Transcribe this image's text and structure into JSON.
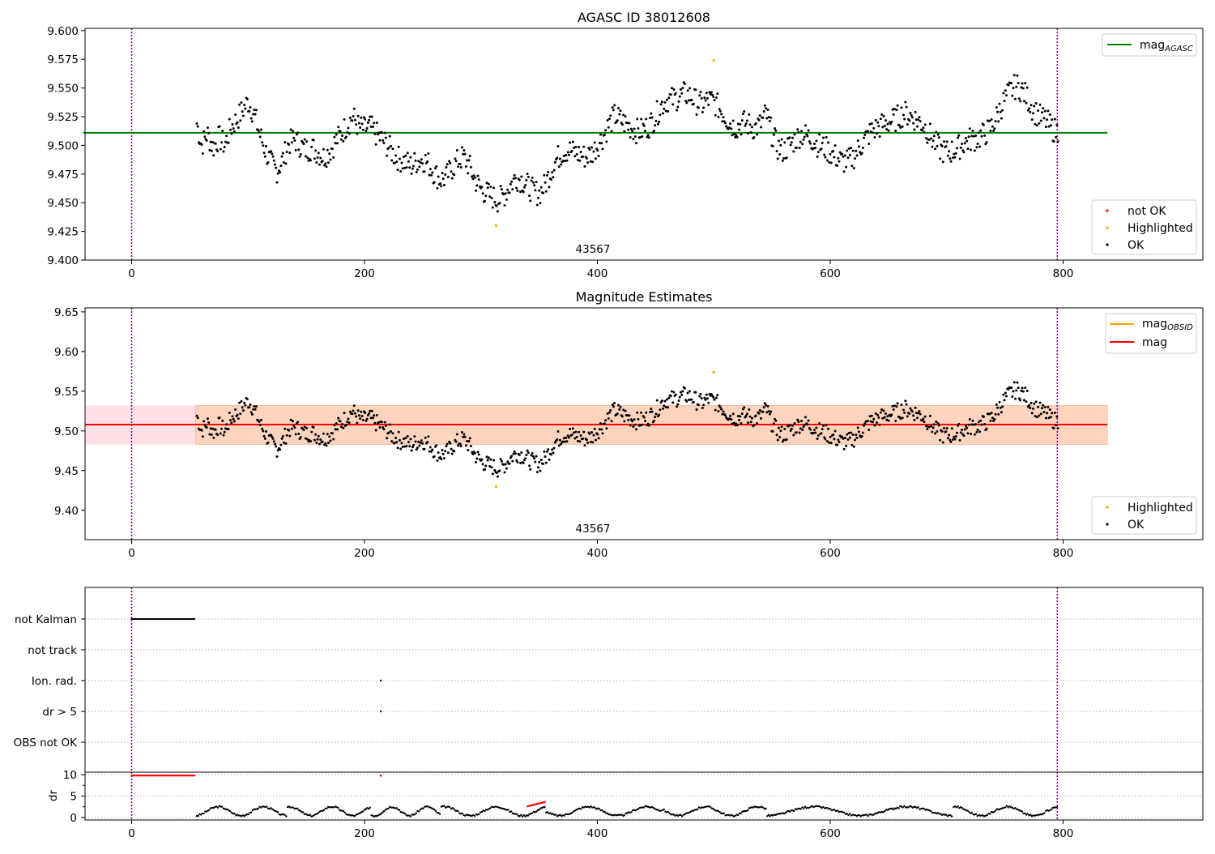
{
  "chart_data": [
    {
      "type": "scatter",
      "title": "AGASC ID 38012608",
      "xlim": [
        -40,
        920
      ],
      "ylim": [
        9.4,
        9.602
      ],
      "x_ticks": [
        "0",
        "200",
        "400",
        "600",
        "800"
      ],
      "y_ticks": [
        "9.400",
        "9.425",
        "9.450",
        "9.475",
        "9.500",
        "9.525",
        "9.550",
        "9.575",
        "9.600"
      ],
      "vlines": [
        0,
        795
      ],
      "hline": {
        "label": "mag_AGASC",
        "value": 9.511,
        "x_range": [
          0,
          838
        ],
        "color": "#008000"
      },
      "annotation": {
        "text": "43567",
        "x": 398,
        "y": 9.41
      },
      "legend_upper": {
        "position": "upper right",
        "entries": [
          {
            "label": "mag",
            "sub": "AGASC",
            "color": "#008000",
            "marker": "line"
          }
        ]
      },
      "legend_lower": {
        "position": "lower right",
        "entries": [
          {
            "label": "not OK",
            "color": "#ff0000",
            "marker": "dot"
          },
          {
            "label": "Highlighted",
            "color": "#ffa500",
            "marker": "dot"
          },
          {
            "label": "OK",
            "color": "#000000",
            "marker": "dot"
          }
        ]
      },
      "series": [
        {
          "name": "OK",
          "source": "magnitude_samples",
          "color": "#000000"
        },
        {
          "name": "Highlighted",
          "color": "#ffa500",
          "points": [
            [
              313,
              9.43
            ],
            [
              500,
              9.574
            ]
          ]
        }
      ]
    },
    {
      "type": "scatter",
      "title": "Magnitude Estimates",
      "xlim": [
        -40,
        920
      ],
      "ylim": [
        9.363,
        9.655
      ],
      "x_ticks": [
        "0",
        "200",
        "400",
        "600",
        "800"
      ],
      "y_ticks": [
        "9.40",
        "9.45",
        "9.50",
        "9.55",
        "9.60",
        "9.65"
      ],
      "vlines": [
        0,
        795
      ],
      "band_pink": {
        "x_range": [
          -40,
          838
        ],
        "y_range": [
          9.483,
          9.532
        ],
        "color": "#ffe0e6"
      },
      "band_orange": {
        "x_range": [
          55,
          838
        ],
        "y_range": [
          9.483,
          9.532
        ],
        "color": "#fdd5bf"
      },
      "mag_line": {
        "value": 9.508,
        "x_range": [
          -40,
          838
        ],
        "color": "#ff0000"
      },
      "mag_obsid_line": {
        "value": 9.508,
        "x_range": [
          55,
          838
        ],
        "color": "#ffa500"
      },
      "annotation": {
        "text": "43567",
        "x": 398,
        "y": 9.37
      },
      "legend_upper": {
        "position": "upper right",
        "entries": [
          {
            "label": "mag",
            "sub": "OBSID",
            "color": "#ffa500",
            "marker": "line"
          },
          {
            "label": "mag",
            "sub": "",
            "color": "#ff0000",
            "marker": "line"
          }
        ]
      },
      "legend_lower": {
        "position": "lower right",
        "entries": [
          {
            "label": "Highlighted",
            "color": "#ffa500",
            "marker": "dot"
          },
          {
            "label": "OK",
            "color": "#000000",
            "marker": "dot"
          }
        ]
      },
      "series": [
        {
          "name": "OK",
          "source": "magnitude_samples",
          "color": "#000000"
        },
        {
          "name": "Highlighted",
          "color": "#ffa500",
          "points": [
            [
              313,
              9.43
            ],
            [
              500,
              9.574
            ]
          ]
        }
      ]
    },
    {
      "type": "scatter",
      "title": "",
      "xlim": [
        -40,
        920
      ],
      "x_ticks": [
        "0",
        "200",
        "400",
        "600",
        "800"
      ],
      "vlines": [
        0,
        795
      ],
      "flag_categories": [
        "not Kalman",
        "not track",
        "Ion. rad.",
        "dr > 5",
        "OBS not OK"
      ],
      "flag_segments": [
        {
          "category": "not Kalman",
          "x_range": [
            0,
            55
          ]
        }
      ],
      "flag_points": [
        {
          "category": "Ion. rad.",
          "x": 214
        },
        {
          "category": "dr > 5",
          "x": 214
        }
      ],
      "dr_panel": {
        "ylabel": "dr",
        "ylim": [
          -0.6,
          10.6
        ],
        "y_ticks": [
          "0",
          "5",
          "10"
        ],
        "gridlines": [
          0,
          5,
          10
        ],
        "red_segment": {
          "x_range": [
            0,
            55
          ],
          "value": 9.8
        },
        "red_point": {
          "x": 214,
          "value": 9.8
        },
        "red_ramp": {
          "x_range": [
            340,
            355
          ],
          "values": [
            2.6,
            3.6
          ]
        },
        "wave_segments": [
          [
            55,
            133
          ],
          [
            133,
            205
          ],
          [
            205,
            265
          ],
          [
            265,
            355
          ],
          [
            355,
            455
          ],
          [
            455,
            545
          ],
          [
            545,
            705
          ],
          [
            705,
            795
          ]
        ],
        "wave_range": [
          0.1,
          2.8
        ]
      }
    }
  ],
  "magnitude_samples": [
    [
      55,
      9.524
    ],
    [
      60,
      9.5
    ],
    [
      65,
      9.51
    ],
    [
      70,
      9.498
    ],
    [
      75,
      9.507
    ],
    [
      80,
      9.5
    ],
    [
      85,
      9.515
    ],
    [
      90,
      9.522
    ],
    [
      95,
      9.53
    ],
    [
      100,
      9.538
    ],
    [
      105,
      9.528
    ],
    [
      110,
      9.51
    ],
    [
      115,
      9.495
    ],
    [
      120,
      9.484
    ],
    [
      125,
      9.478
    ],
    [
      130,
      9.488
    ],
    [
      135,
      9.502
    ],
    [
      140,
      9.505
    ],
    [
      145,
      9.5
    ],
    [
      150,
      9.496
    ],
    [
      155,
      9.498
    ],
    [
      160,
      9.494
    ],
    [
      165,
      9.49
    ],
    [
      170,
      9.495
    ],
    [
      175,
      9.503
    ],
    [
      180,
      9.51
    ],
    [
      185,
      9.518
    ],
    [
      190,
      9.525
    ],
    [
      195,
      9.516
    ],
    [
      200,
      9.514
    ],
    [
      205,
      9.516
    ],
    [
      210,
      9.51
    ],
    [
      215,
      9.505
    ],
    [
      220,
      9.5
    ],
    [
      225,
      9.492
    ],
    [
      230,
      9.488
    ],
    [
      235,
      9.486
    ],
    [
      240,
      9.482
    ],
    [
      245,
      9.486
    ],
    [
      250,
      9.488
    ],
    [
      255,
      9.484
    ],
    [
      260,
      9.476
    ],
    [
      265,
      9.47
    ],
    [
      270,
      9.472
    ],
    [
      275,
      9.48
    ],
    [
      280,
      9.486
    ],
    [
      285,
      9.49
    ],
    [
      290,
      9.482
    ],
    [
      295,
      9.47
    ],
    [
      300,
      9.462
    ],
    [
      305,
      9.458
    ],
    [
      310,
      9.455
    ],
    [
      315,
      9.452
    ],
    [
      320,
      9.457
    ],
    [
      325,
      9.465
    ],
    [
      330,
      9.472
    ],
    [
      335,
      9.47
    ],
    [
      340,
      9.465
    ],
    [
      345,
      9.46
    ],
    [
      350,
      9.458
    ],
    [
      355,
      9.465
    ],
    [
      360,
      9.478
    ],
    [
      365,
      9.488
    ],
    [
      370,
      9.494
    ],
    [
      375,
      9.496
    ],
    [
      380,
      9.494
    ],
    [
      385,
      9.492
    ],
    [
      390,
      9.49
    ],
    [
      395,
      9.493
    ],
    [
      400,
      9.5
    ],
    [
      405,
      9.508
    ],
    [
      410,
      9.518
    ],
    [
      415,
      9.526
    ],
    [
      420,
      9.522
    ],
    [
      425,
      9.518
    ],
    [
      430,
      9.515
    ],
    [
      435,
      9.512
    ],
    [
      440,
      9.514
    ],
    [
      445,
      9.518
    ],
    [
      450,
      9.525
    ],
    [
      455,
      9.535
    ],
    [
      460,
      9.54
    ],
    [
      465,
      9.54
    ],
    [
      470,
      9.542
    ],
    [
      475,
      9.545
    ],
    [
      480,
      9.543
    ],
    [
      485,
      9.538
    ],
    [
      490,
      9.535
    ],
    [
      495,
      9.54
    ],
    [
      500,
      9.538
    ],
    [
      505,
      9.532
    ],
    [
      510,
      9.525
    ],
    [
      515,
      9.518
    ],
    [
      520,
      9.516
    ],
    [
      525,
      9.52
    ],
    [
      530,
      9.518
    ],
    [
      535,
      9.515
    ],
    [
      540,
      9.518
    ],
    [
      545,
      9.528
    ],
    [
      550,
      9.51
    ],
    [
      555,
      9.498
    ],
    [
      560,
      9.495
    ],
    [
      565,
      9.5
    ],
    [
      570,
      9.505
    ],
    [
      575,
      9.51
    ],
    [
      580,
      9.508
    ],
    [
      585,
      9.505
    ],
    [
      590,
      9.5
    ],
    [
      595,
      9.498
    ],
    [
      600,
      9.494
    ],
    [
      605,
      9.49
    ],
    [
      610,
      9.486
    ],
    [
      615,
      9.486
    ],
    [
      620,
      9.49
    ],
    [
      625,
      9.498
    ],
    [
      630,
      9.505
    ],
    [
      635,
      9.512
    ],
    [
      640,
      9.515
    ],
    [
      645,
      9.518
    ],
    [
      650,
      9.52
    ],
    [
      655,
      9.522
    ],
    [
      660,
      9.526
    ],
    [
      665,
      9.528
    ],
    [
      670,
      9.525
    ],
    [
      675,
      9.522
    ],
    [
      680,
      9.518
    ],
    [
      685,
      9.51
    ],
    [
      690,
      9.502
    ],
    [
      695,
      9.496
    ],
    [
      700,
      9.494
    ],
    [
      705,
      9.495
    ],
    [
      710,
      9.498
    ],
    [
      715,
      9.502
    ],
    [
      720,
      9.505
    ],
    [
      725,
      9.506
    ],
    [
      730,
      9.508
    ],
    [
      735,
      9.512
    ],
    [
      740,
      9.518
    ],
    [
      745,
      9.53
    ],
    [
      750,
      9.54
    ],
    [
      755,
      9.548
    ],
    [
      760,
      9.552
    ],
    [
      765,
      9.548
    ],
    [
      770,
      9.54
    ],
    [
      775,
      9.53
    ],
    [
      780,
      9.525
    ],
    [
      785,
      9.522
    ],
    [
      790,
      9.515
    ],
    [
      795,
      9.512
    ]
  ]
}
